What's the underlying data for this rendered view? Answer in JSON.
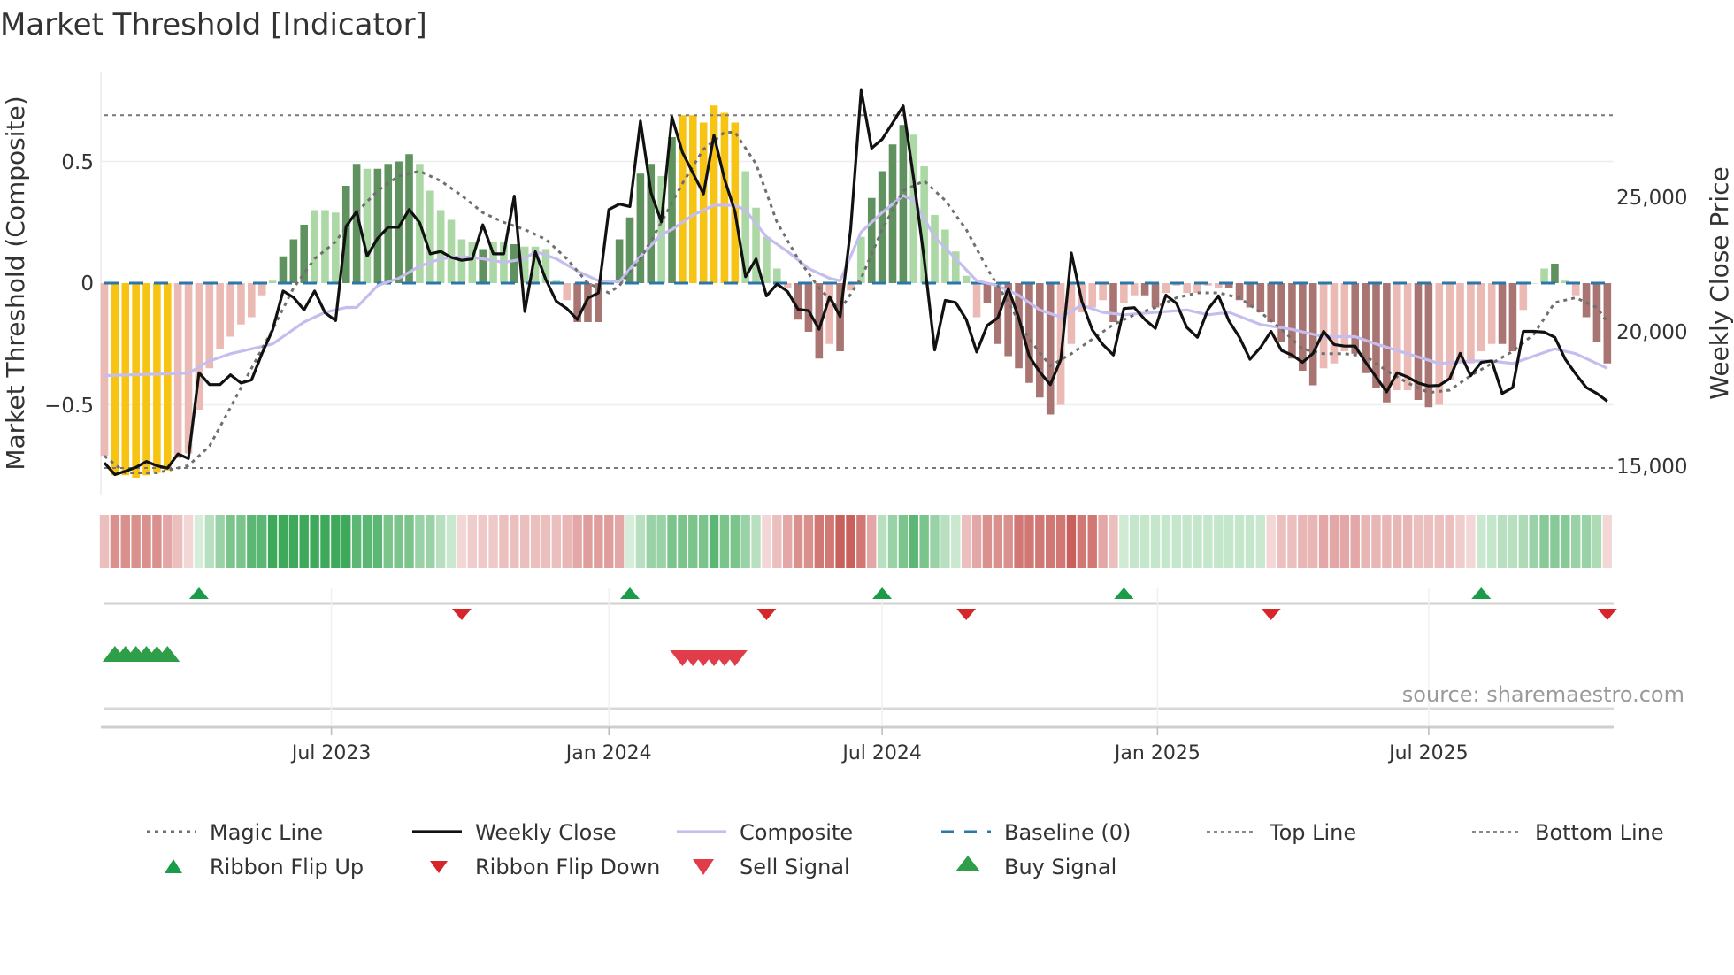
{
  "title": "Market Threshold [Indicator]",
  "source": "source: sharemaestro.com",
  "colors": {
    "yellow": "#f8c414",
    "bar_dark_green": "#5f925f",
    "bar_light_green": "#acd8a6",
    "bar_dark_red": "#a97572",
    "bar_pink": "#ebbab5",
    "weekly_close": "#111111",
    "composite": "#c5bdee",
    "magic": "#6f6f6f",
    "baseline": "#2b77a8",
    "ribbon_green": "#3fa95b",
    "ribbon_red": "#c9605c",
    "flip_up": "#1a9c48",
    "flip_down": "#d7262a",
    "buy": "#2f9e48",
    "sell": "#e03c4a"
  },
  "legend": [
    {
      "label": "Magic Line",
      "kind": "magic"
    },
    {
      "label": "Weekly Close",
      "kind": "close"
    },
    {
      "label": "Composite",
      "kind": "composite"
    },
    {
      "label": "Baseline (0)",
      "kind": "baseline"
    },
    {
      "label": "Top Line",
      "kind": "top"
    },
    {
      "label": "Bottom Line",
      "kind": "bottom"
    },
    {
      "label": "Ribbon Flip Up",
      "kind": "flipup"
    },
    {
      "label": "Ribbon Flip Down",
      "kind": "flipdown"
    },
    {
      "label": "Sell Signal",
      "kind": "sell"
    },
    {
      "label": "Buy Signal",
      "kind": "buy"
    }
  ],
  "chart_data": {
    "type": "bar",
    "title": "Market Threshold [Indicator]",
    "xlabel": "",
    "left_axis": {
      "label": "Market Threshold (Composite)",
      "range": [
        -0.85,
        0.87
      ],
      "ticks": [
        {
          "value": 0.5,
          "label": "0.5"
        },
        {
          "value": 0,
          "label": "0"
        },
        {
          "value": -0.5,
          "label": "−0.5"
        }
      ]
    },
    "right_axis": {
      "label": "Weekly Close Price",
      "ticks": [
        {
          "value": 25000,
          "label": "25,000"
        },
        {
          "value": 20000,
          "label": "20,000"
        },
        {
          "value": 15000,
          "label": "15,000"
        }
      ]
    },
    "x_ticks": [
      {
        "week": 21.6,
        "label": "Jul 2023"
      },
      {
        "week": 48.0,
        "label": "Jan 2024"
      },
      {
        "week": 74.0,
        "label": "Jul 2024"
      },
      {
        "week": 100.2,
        "label": "Jan 2025"
      },
      {
        "week": 126.0,
        "label": "Jul 2025"
      }
    ],
    "top_line": 0.69,
    "bottom_line": -0.76,
    "baseline": 0,
    "composite_bars": [
      -0.71,
      -0.79,
      -0.79,
      -0.8,
      -0.79,
      -0.78,
      -0.77,
      -0.72,
      -0.7,
      -0.52,
      -0.35,
      -0.27,
      -0.22,
      -0.17,
      -0.14,
      -0.05,
      0.01,
      0.11,
      0.18,
      0.24,
      0.3,
      0.3,
      0.29,
      0.4,
      0.49,
      0.47,
      0.47,
      0.49,
      0.5,
      0.53,
      0.49,
      0.38,
      0.3,
      0.26,
      0.18,
      0.17,
      0.14,
      0.17,
      0.17,
      0.16,
      0.15,
      0.15,
      0.14,
      0.01,
      -0.07,
      -0.16,
      -0.16,
      -0.16,
      0.01,
      0.18,
      0.27,
      0.45,
      0.49,
      0.44,
      0.6,
      0.69,
      0.69,
      0.66,
      0.73,
      0.7,
      0.66,
      0.46,
      0.31,
      0.19,
      0.06,
      -0.02,
      -0.15,
      -0.2,
      -0.31,
      -0.25,
      -0.28,
      -0.03,
      0.19,
      0.35,
      0.46,
      0.57,
      0.65,
      0.61,
      0.48,
      0.28,
      0.22,
      0.13,
      0.03,
      -0.14,
      -0.08,
      -0.25,
      -0.3,
      -0.35,
      -0.41,
      -0.47,
      -0.54,
      -0.5,
      -0.25,
      -0.12,
      -0.1,
      -0.07,
      -0.16,
      -0.08,
      -0.05,
      -0.05,
      -0.1,
      -0.04,
      -0.01,
      -0.04,
      -0.04,
      -0.01,
      -0.02,
      -0.02,
      -0.07,
      -0.1,
      -0.12,
      -0.16,
      -0.24,
      -0.31,
      -0.36,
      -0.42,
      -0.35,
      -0.33,
      -0.28,
      -0.29,
      -0.37,
      -0.43,
      -0.49,
      -0.44,
      -0.44,
      -0.48,
      -0.51,
      -0.5,
      -0.4,
      -0.33,
      -0.33,
      -0.28,
      -0.25,
      -0.25,
      -0.28,
      -0.11,
      0,
      0.06,
      0.08,
      0.01,
      -0.05,
      -0.14,
      -0.24,
      -0.33
    ],
    "bar_shade": "rYYYYYYrrrrrrrrrgGGGgggGGgGGGGggggggGggGggggrRRRgGGGGgGYYYYYYggggrRRRrRrgGGGGggggggrRRRRRRRrrrrrRrrRRrrrrrrRRRRRRRRRrrrRRRRrrRRrrrrrrRRrrgGgrRRR",
    "weekly_close": [
      15110,
      14670,
      14800,
      14940,
      15160,
      15000,
      14910,
      15440,
      15270,
      18460,
      18020,
      18020,
      18380,
      18080,
      18190,
      19180,
      20050,
      21500,
      21260,
      20800,
      21500,
      20690,
      20400,
      23900,
      24450,
      22800,
      23460,
      23870,
      23870,
      24530,
      24040,
      22880,
      22970,
      22750,
      22640,
      22690,
      23960,
      22880,
      22880,
      25030,
      20740,
      22960,
      21920,
      21120,
      20850,
      20440,
      21230,
      21430,
      24530,
      24730,
      24640,
      27820,
      25160,
      24070,
      27970,
      26650,
      25880,
      25110,
      27290,
      25660,
      24450,
      22030,
      22690,
      21320,
      21760,
      21480,
      20820,
      20770,
      20080,
      21290,
      20550,
      23790,
      28960,
      26810,
      27140,
      27750,
      28380,
      25660,
      22690,
      19310,
      21150,
      21070,
      20440,
      19230,
      20220,
      20500,
      21590,
      20500,
      19070,
      18490,
      18020,
      18960,
      22910,
      21120,
      20050,
      19510,
      19120,
      20850,
      20880,
      20440,
      20110,
      21350,
      21040,
      20140,
      19780,
      20820,
      21320,
      20380,
      19780,
      18960,
      19400,
      20000,
      19290,
      19120,
      18850,
      19180,
      20000,
      19510,
      19450,
      19450,
      18850,
      18300,
      17750,
      18460,
      18300,
      18080,
      17970,
      17990,
      18240,
      19180,
      18350,
      18850,
      18900,
      17690,
      17910,
      20000,
      20000,
      19970,
      19780,
      18960,
      18410,
      17910,
      17690,
      17400
    ],
    "composite_line": [
      [
        0,
        -0.38
      ],
      [
        8,
        -0.37
      ],
      [
        10,
        -0.32
      ],
      [
        12,
        -0.29
      ],
      [
        14,
        -0.27
      ],
      [
        16,
        -0.25
      ],
      [
        17,
        -0.22
      ],
      [
        19,
        -0.16
      ],
      [
        21,
        -0.12
      ],
      [
        23,
        -0.1
      ],
      [
        24,
        -0.1
      ],
      [
        26,
        -0.01
      ],
      [
        28,
        0.02
      ],
      [
        30,
        0.07
      ],
      [
        32,
        0.1
      ],
      [
        34,
        0.11
      ],
      [
        36,
        0.1
      ],
      [
        38,
        0.085
      ],
      [
        40,
        0.1
      ],
      [
        41,
        0.13
      ],
      [
        43,
        0.1
      ],
      [
        45,
        0.05
      ],
      [
        47,
        0.01
      ],
      [
        49,
        0.006
      ],
      [
        51,
        0.11
      ],
      [
        53,
        0.2
      ],
      [
        54,
        0.22
      ],
      [
        56,
        0.28
      ],
      [
        58,
        0.32
      ],
      [
        60,
        0.32
      ],
      [
        61,
        0.3
      ],
      [
        63,
        0.19
      ],
      [
        65,
        0.13
      ],
      [
        67,
        0.06
      ],
      [
        69,
        0.02
      ],
      [
        70,
        0.01
      ],
      [
        72,
        0.21
      ],
      [
        74,
        0.29
      ],
      [
        76,
        0.36
      ],
      [
        77,
        0.34
      ],
      [
        79,
        0.19
      ],
      [
        81,
        0.1
      ],
      [
        83,
        0.01
      ],
      [
        85,
        -0.01
      ],
      [
        87,
        -0.05
      ],
      [
        89,
        -0.11
      ],
      [
        91,
        -0.14
      ],
      [
        93,
        -0.09
      ],
      [
        95,
        -0.12
      ],
      [
        97,
        -0.13
      ],
      [
        100,
        -0.12
      ],
      [
        103,
        -0.11
      ],
      [
        105,
        -0.13
      ],
      [
        107,
        -0.12
      ],
      [
        110,
        -0.17
      ],
      [
        113,
        -0.19
      ],
      [
        116,
        -0.22
      ],
      [
        119,
        -0.22
      ],
      [
        121,
        -0.25
      ],
      [
        124,
        -0.29
      ],
      [
        127,
        -0.33
      ],
      [
        130,
        -0.32
      ],
      [
        132,
        -0.32
      ],
      [
        134,
        -0.33
      ],
      [
        136,
        -0.3
      ],
      [
        138,
        -0.27
      ],
      [
        140,
        -0.29
      ],
      [
        143,
        -0.35
      ]
    ],
    "magic_line": [
      [
        0,
        -0.71
      ],
      [
        2,
        -0.78
      ],
      [
        5,
        -0.78
      ],
      [
        8,
        -0.75
      ],
      [
        10,
        -0.67
      ],
      [
        12,
        -0.51
      ],
      [
        14,
        -0.35
      ],
      [
        16,
        -0.19
      ],
      [
        18,
        -0.02
      ],
      [
        20,
        0.1
      ],
      [
        22,
        0.17
      ],
      [
        24,
        0.29
      ],
      [
        26,
        0.38
      ],
      [
        28,
        0.44
      ],
      [
        30,
        0.46
      ],
      [
        32,
        0.42
      ],
      [
        34,
        0.36
      ],
      [
        36,
        0.29
      ],
      [
        38,
        0.25
      ],
      [
        40,
        0.22
      ],
      [
        42,
        0.18
      ],
      [
        44,
        0.1
      ],
      [
        46,
        0
      ],
      [
        48,
        -0.04
      ],
      [
        49,
        -0.01
      ],
      [
        51,
        0.1
      ],
      [
        53,
        0.25
      ],
      [
        55,
        0.41
      ],
      [
        57,
        0.55
      ],
      [
        59,
        0.62
      ],
      [
        60,
        0.62
      ],
      [
        62,
        0.49
      ],
      [
        64,
        0.25
      ],
      [
        66,
        0.1
      ],
      [
        68,
        -0.02
      ],
      [
        70,
        -0.11
      ],
      [
        72,
        0.02
      ],
      [
        74,
        0.22
      ],
      [
        76,
        0.38
      ],
      [
        78,
        0.42
      ],
      [
        80,
        0.34
      ],
      [
        82,
        0.22
      ],
      [
        84,
        0.06
      ],
      [
        86,
        -0.08
      ],
      [
        88,
        -0.23
      ],
      [
        90,
        -0.34
      ],
      [
        92,
        -0.29
      ],
      [
        94,
        -0.23
      ],
      [
        96,
        -0.17
      ],
      [
        98,
        -0.13
      ],
      [
        100,
        -0.1
      ],
      [
        102,
        -0.06
      ],
      [
        104,
        -0.04
      ],
      [
        106,
        -0.04
      ],
      [
        108,
        -0.06
      ],
      [
        110,
        -0.12
      ],
      [
        112,
        -0.19
      ],
      [
        114,
        -0.27
      ],
      [
        116,
        -0.29
      ],
      [
        118,
        -0.29
      ],
      [
        120,
        -0.3
      ],
      [
        122,
        -0.36
      ],
      [
        124,
        -0.41
      ],
      [
        126,
        -0.45
      ],
      [
        128,
        -0.44
      ],
      [
        130,
        -0.38
      ],
      [
        132,
        -0.33
      ],
      [
        134,
        -0.28
      ],
      [
        136,
        -0.21
      ],
      [
        138,
        -0.08
      ],
      [
        140,
        -0.06
      ],
      [
        142,
        -0.1
      ],
      [
        143,
        -0.16
      ]
    ],
    "ribbon": [
      -1,
      -2,
      -2,
      -2,
      -2,
      -2,
      -1.5,
      -1,
      -0.5,
      0.5,
      1,
      1.5,
      2,
      2,
      2.5,
      2.5,
      3,
      3,
      3,
      3,
      3,
      3,
      3,
      3,
      2.5,
      2.5,
      2.5,
      2,
      2,
      2,
      1.5,
      1.5,
      1,
      0.7,
      -0.5,
      -0.7,
      -0.8,
      -0.8,
      -1,
      -1,
      -1,
      -1,
      -1,
      -1,
      -1.2,
      -1.5,
      -1.7,
      -1.7,
      -1.7,
      -1.5,
      0.5,
      1,
      1.5,
      1.5,
      2,
      2,
      2,
      2,
      2.5,
      2,
      2,
      1.5,
      1,
      -0.5,
      -1,
      -1.5,
      -2,
      -2,
      -2.5,
      -2.5,
      -3,
      -3,
      -2.5,
      -1.5,
      1,
      1.5,
      2,
      2.5,
      2,
      1.5,
      1,
      0.7,
      -1,
      -1.5,
      -2,
      -2,
      -2,
      -2.5,
      -2.5,
      -2.5,
      -2.5,
      -2.5,
      -3,
      -2.5,
      -2.5,
      -1.5,
      -1,
      0.6,
      0.8,
      0.8,
      0.8,
      0.8,
      0.8,
      0.8,
      0.8,
      0.8,
      0.8,
      0.8,
      0.8,
      0.8,
      0.7,
      -0.5,
      -1,
      -1,
      -1.2,
      -1.2,
      -1.5,
      -1.5,
      -1.5,
      -1.5,
      -1.2,
      -1.2,
      -1.2,
      -1.2,
      -1.2,
      -1,
      -1,
      -1,
      -1,
      -0.7,
      -0.5,
      0.7,
      0.8,
      1,
      1,
      1.2,
      1.5,
      1.8,
      1.8,
      1.8,
      1.5,
      1.5,
      1.2,
      -0.5
    ],
    "ribbon_flip_up": [
      9,
      50,
      74,
      97,
      131
    ],
    "ribbon_flip_down": [
      34,
      63,
      82,
      111,
      143
    ],
    "buy_signals": [
      1,
      2,
      3,
      4,
      5,
      6
    ],
    "sell_signals": [
      55,
      56,
      57,
      58,
      59,
      60
    ],
    "legend_position": "bottom"
  }
}
